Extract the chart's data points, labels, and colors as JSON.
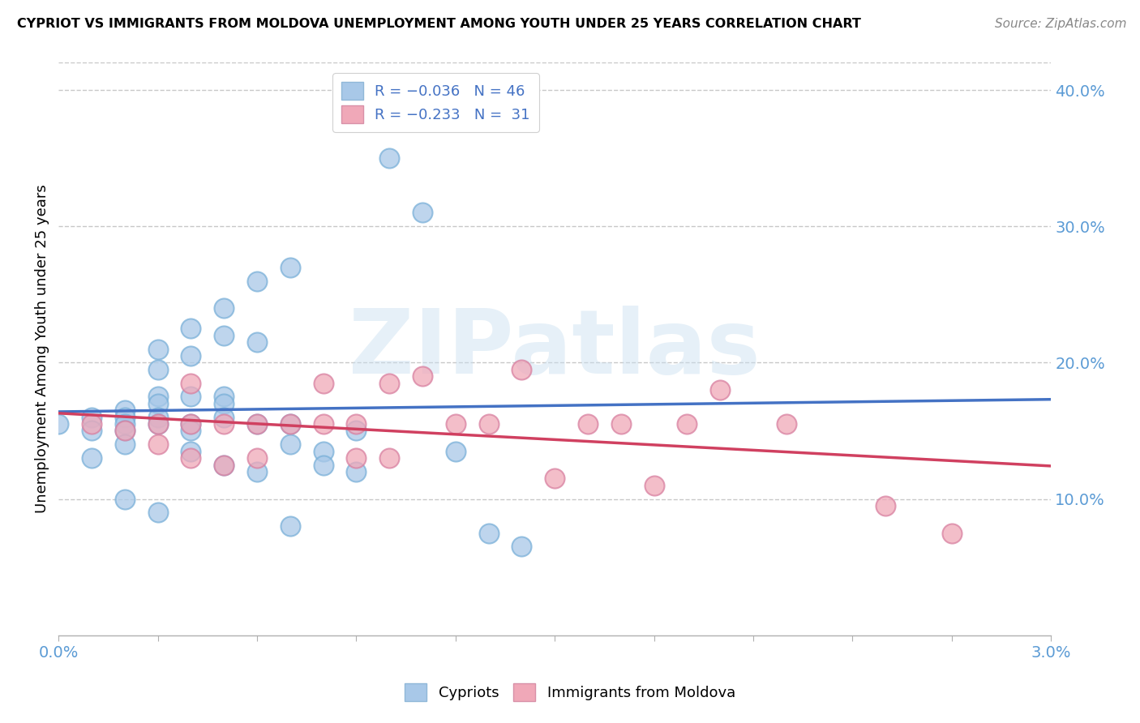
{
  "title": "CYPRIOT VS IMMIGRANTS FROM MOLDOVA UNEMPLOYMENT AMONG YOUTH UNDER 25 YEARS CORRELATION CHART",
  "source": "Source: ZipAtlas.com",
  "ylabel": "Unemployment Among Youth under 25 years",
  "right_yticks": [
    "40.0%",
    "30.0%",
    "20.0%",
    "10.0%"
  ],
  "right_ytick_vals": [
    0.4,
    0.3,
    0.2,
    0.1
  ],
  "xlim": [
    0.0,
    0.03
  ],
  "ylim": [
    0.0,
    0.42
  ],
  "watermark": "ZIPatlas",
  "blue_color": "#a8c8e8",
  "pink_color": "#f0a8b8",
  "blue_line_color": "#4472c4",
  "pink_line_color": "#d04060",
  "blue_scatter_x": [
    0.0,
    0.001,
    0.001,
    0.001,
    0.002,
    0.002,
    0.002,
    0.002,
    0.002,
    0.002,
    0.003,
    0.003,
    0.003,
    0.003,
    0.003,
    0.003,
    0.003,
    0.004,
    0.004,
    0.004,
    0.004,
    0.004,
    0.004,
    0.005,
    0.005,
    0.005,
    0.005,
    0.005,
    0.005,
    0.006,
    0.006,
    0.006,
    0.006,
    0.007,
    0.007,
    0.007,
    0.007,
    0.008,
    0.008,
    0.009,
    0.009,
    0.01,
    0.011,
    0.012,
    0.013,
    0.014
  ],
  "blue_scatter_y": [
    0.155,
    0.16,
    0.15,
    0.13,
    0.165,
    0.16,
    0.155,
    0.15,
    0.14,
    0.1,
    0.21,
    0.195,
    0.175,
    0.17,
    0.16,
    0.155,
    0.09,
    0.225,
    0.205,
    0.175,
    0.155,
    0.15,
    0.135,
    0.24,
    0.22,
    0.175,
    0.17,
    0.16,
    0.125,
    0.26,
    0.215,
    0.155,
    0.12,
    0.27,
    0.155,
    0.14,
    0.08,
    0.135,
    0.125,
    0.15,
    0.12,
    0.35,
    0.31,
    0.135,
    0.075,
    0.065
  ],
  "pink_scatter_x": [
    0.001,
    0.002,
    0.003,
    0.003,
    0.004,
    0.004,
    0.004,
    0.005,
    0.005,
    0.006,
    0.006,
    0.007,
    0.008,
    0.008,
    0.009,
    0.009,
    0.01,
    0.01,
    0.011,
    0.012,
    0.013,
    0.014,
    0.015,
    0.016,
    0.017,
    0.018,
    0.019,
    0.02,
    0.022,
    0.025,
    0.027
  ],
  "pink_scatter_y": [
    0.155,
    0.15,
    0.155,
    0.14,
    0.185,
    0.155,
    0.13,
    0.155,
    0.125,
    0.155,
    0.13,
    0.155,
    0.185,
    0.155,
    0.155,
    0.13,
    0.185,
    0.13,
    0.19,
    0.155,
    0.155,
    0.195,
    0.115,
    0.155,
    0.155,
    0.11,
    0.155,
    0.18,
    0.155,
    0.095,
    0.075
  ]
}
